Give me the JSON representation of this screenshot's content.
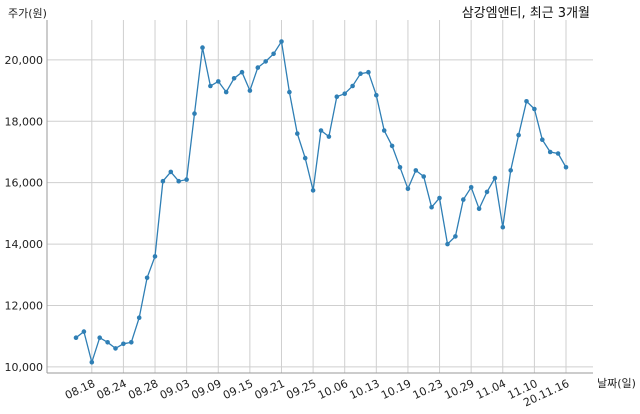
{
  "chart_data": {
    "type": "line",
    "title": "삼강엠앤티, 최근 3개월",
    "xlabel": "날짜(일)",
    "ylabel": "주가(원)",
    "ylim": [
      9800,
      21300
    ],
    "yticks": [
      10000,
      12000,
      14000,
      16000,
      18000,
      20000
    ],
    "ytick_labels": [
      "10,000",
      "12,000",
      "14,000",
      "16,000",
      "18,000",
      "20,000"
    ],
    "xtick_labels": [
      "08.18",
      "08.24",
      "08.28",
      "09.03",
      "09.09",
      "09.15",
      "09.21",
      "09.25",
      "10.06",
      "10.13",
      "10.19",
      "10.23",
      "10.29",
      "11.04",
      "11.10",
      "20.11.16"
    ],
    "xtick_index": [
      2,
      6,
      10,
      14,
      18,
      22,
      26,
      30,
      34,
      38,
      42,
      46,
      50,
      54,
      58,
      62
    ],
    "grid": true,
    "color": "#2f7fb5",
    "series": [
      {
        "values": [
          10950,
          11150,
          10150,
          10950,
          10800,
          10600,
          10750,
          10800,
          11600,
          12900,
          13600,
          16050,
          16350,
          16050,
          16100,
          18250,
          20400,
          19150,
          19300,
          18950,
          19400,
          19600,
          19000,
          19750,
          19950,
          20200,
          20600,
          18950,
          17600,
          16800,
          15750,
          17700,
          17500,
          18800,
          18900,
          19150,
          19550,
          19600,
          18850,
          17700,
          17200,
          16500,
          15800,
          16400,
          16200,
          15200,
          15500,
          14000,
          14250,
          15450,
          15850,
          15150,
          15700,
          16150,
          14550,
          16400,
          17550,
          18650,
          18400,
          17400,
          17000,
          16950,
          16500
        ]
      }
    ]
  }
}
